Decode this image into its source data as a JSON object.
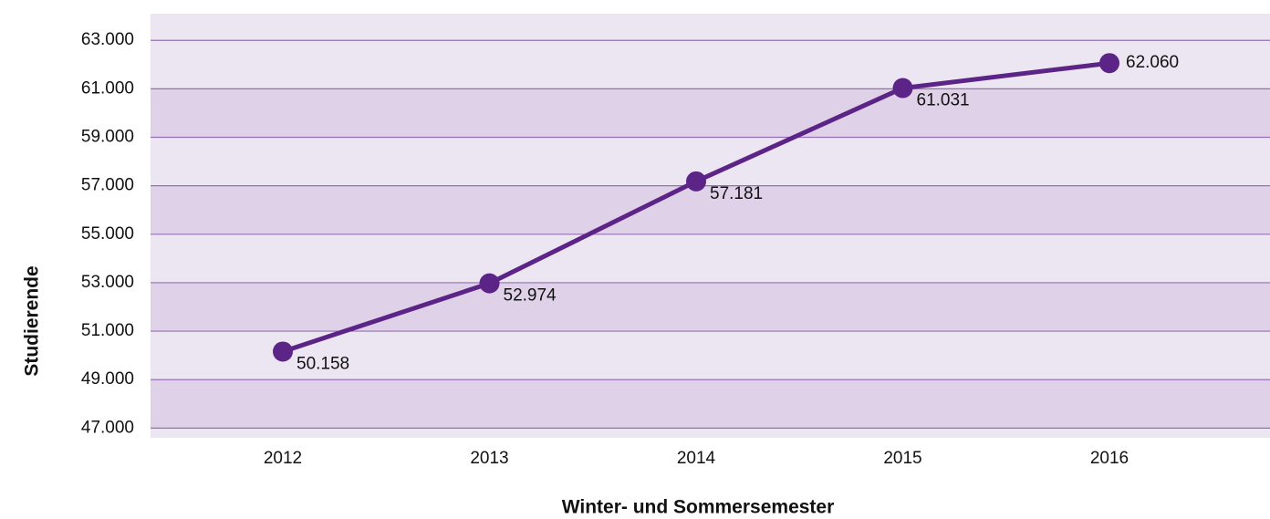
{
  "chart_data": {
    "type": "line",
    "x_label": "Winter- und Sommersemester",
    "y_label": "Studierende",
    "categories": [
      "2012",
      "2013",
      "2014",
      "2015",
      "2016"
    ],
    "series": [
      {
        "color": "#5b2486",
        "values": [
          50158,
          52974,
          57181,
          61031,
          62060
        ],
        "value_labels": [
          "50.158",
          "52.974",
          "57.181",
          "61.031",
          "62.060"
        ]
      }
    ],
    "ylim": [
      46600,
      64100
    ],
    "yticks": [
      {
        "value": 47000,
        "label": "47.000"
      },
      {
        "value": 49000,
        "label": "49.000"
      },
      {
        "value": 51000,
        "label": "51.000"
      },
      {
        "value": 53000,
        "label": "53.000"
      },
      {
        "value": 55000,
        "label": "55.000"
      },
      {
        "value": 57000,
        "label": "57.000"
      },
      {
        "value": 59000,
        "label": "59.000"
      },
      {
        "value": 61000,
        "label": "61.000"
      },
      {
        "value": 63000,
        "label": "63.000"
      }
    ],
    "grid": true
  }
}
